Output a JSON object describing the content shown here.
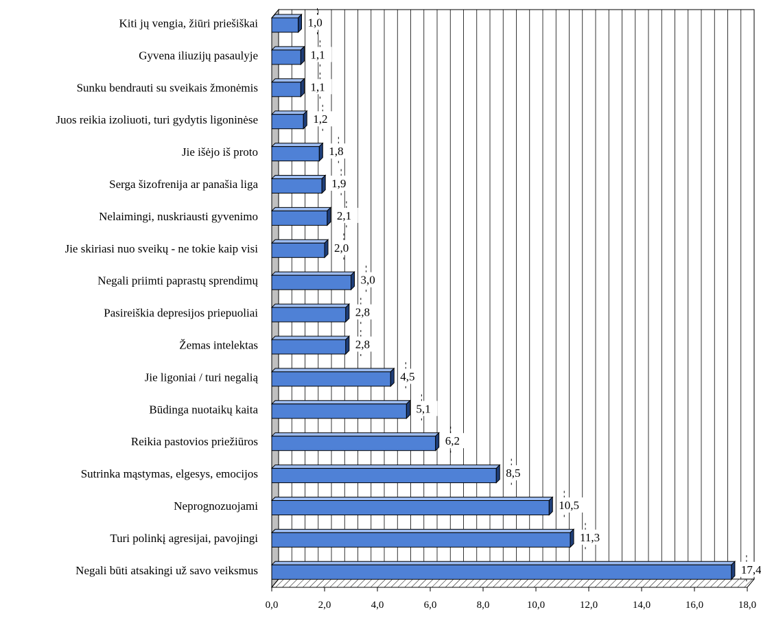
{
  "chart_data": {
    "type": "bar",
    "orientation": "horizontal",
    "title": "",
    "xlabel": "",
    "ylabel": "",
    "xlim": [
      0,
      18
    ],
    "x_tick_step": 2,
    "x_ticks": [
      "0,0",
      "2,0",
      "4,0",
      "6,0",
      "8,0",
      "10,0",
      "12,0",
      "14,0",
      "16,0",
      "18,0"
    ],
    "grid": "vertical",
    "legend": "none",
    "bar_color": "#4f81d6",
    "categories": [
      "Kiti jų vengia, žiūri priešiškai",
      "Gyvena iliuzijų pasaulyje",
      "Sunku bendrauti su sveikais žmonėmis",
      "Juos reikia izoliuoti, turi gydytis ligoninėse",
      "Jie išėjo iš proto",
      "Serga šizofrenija ar panašia liga",
      "Nelaimingi, nuskriausti gyvenimo",
      "Jie skiriasi nuo sveikų - ne tokie kaip visi",
      "Negali priimti paprastų sprendimų",
      "Pasireiškia depresijos priepuoliai",
      "Žemas intelektas",
      "Jie ligoniai / turi negalią",
      "Būdinga nuotaikų kaita",
      "Reikia pastovios priežiūros",
      "Sutrinka mąstymas, elgesys, emocijos",
      "Neprognozuojami",
      "Turi polinkį agresijai, pavojingi",
      "Negali būti atsakingi už savo veiksmus"
    ],
    "values": [
      1.0,
      1.1,
      1.1,
      1.2,
      1.8,
      1.9,
      2.1,
      2.0,
      3.0,
      2.8,
      2.8,
      4.5,
      5.1,
      6.2,
      8.5,
      10.5,
      11.3,
      17.4
    ],
    "value_labels": [
      "1,0",
      "1,1",
      "1,1",
      "1,2",
      "1,8",
      "1,9",
      "2,1",
      "2,0",
      "3,0",
      "2,8",
      "2,8",
      "4,5",
      "5,1",
      "6,2",
      "8,5",
      "10,5",
      "11,3",
      "17,4"
    ]
  }
}
